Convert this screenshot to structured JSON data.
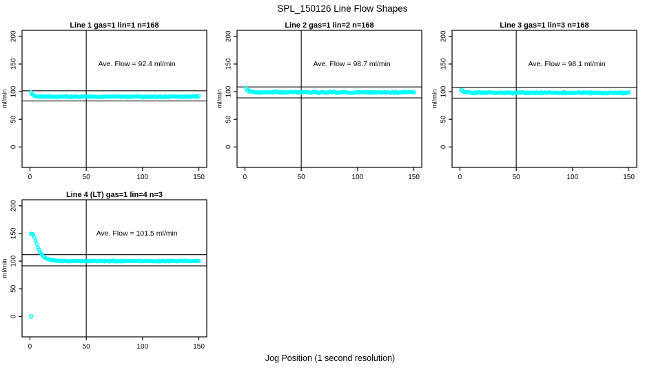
{
  "page": {
    "title": "SPL_150126  Line Flow Shapes",
    "xlabel": "Jog Position (1 second resolution)",
    "background": "#ffffff",
    "text_color": "#000000",
    "axis_color": "#000000"
  },
  "chart_data": [
    {
      "type": "scatter",
      "title": "Line 1 gas=1 lin=1 n=168",
      "annotation": "Ave. Flow =  92.4  ml/min",
      "ave_flow_ml_min": 92.4,
      "n": 168,
      "ylabel": "ml/min",
      "xticks": [
        0,
        50,
        100,
        150
      ],
      "yticks": [
        0,
        50,
        100,
        150,
        200
      ],
      "xlim": [
        -7,
        157
      ],
      "ylim": [
        -37,
        211
      ],
      "vline_x": 50,
      "hlines": [
        101.6,
        83.2
      ],
      "annotation_pos": [
        95,
        150
      ],
      "point_color": "#00ffff",
      "marker": "open-circle",
      "series": {
        "name": "flow",
        "x_start": 1,
        "x_end": 150,
        "step": 1,
        "noise": 0.9,
        "seed": 11,
        "key_points": [
          [
            1,
            98
          ],
          [
            2,
            95.5
          ],
          [
            3,
            93.5
          ],
          [
            4,
            92.5
          ],
          [
            6,
            91.5
          ],
          [
            10,
            91
          ],
          [
            80,
            91
          ],
          [
            150,
            91
          ]
        ]
      },
      "extra_points": []
    },
    {
      "type": "scatter",
      "title": "Line 2 gas=1 lin=2 n=168",
      "annotation": "Ave. Flow =  98.7  ml/min",
      "ave_flow_ml_min": 98.7,
      "n": 168,
      "ylabel": "ml/min",
      "xticks": [
        0,
        50,
        100,
        150
      ],
      "yticks": [
        0,
        50,
        100,
        150,
        200
      ],
      "xlim": [
        -7,
        157
      ],
      "ylim": [
        -37,
        211
      ],
      "vline_x": 50,
      "hlines": [
        108.6,
        88.8
      ],
      "annotation_pos": [
        95,
        150
      ],
      "point_color": "#00ffff",
      "marker": "open-circle",
      "series": {
        "name": "flow",
        "x_start": 1,
        "x_end": 150,
        "step": 1,
        "noise": 0.9,
        "seed": 22,
        "key_points": [
          [
            1,
            106
          ],
          [
            2,
            104
          ],
          [
            3,
            102.5
          ],
          [
            4,
            101
          ],
          [
            5,
            100.3
          ],
          [
            7,
            99.5
          ],
          [
            10,
            99
          ],
          [
            80,
            98.8
          ],
          [
            150,
            98.7
          ]
        ]
      },
      "extra_points": []
    },
    {
      "type": "scatter",
      "title": "Line 3 gas=1 lin=3 n=168",
      "annotation": "Ave. Flow =  98.1  ml/min",
      "ave_flow_ml_min": 98.1,
      "n": 168,
      "ylabel": "ml/min",
      "xticks": [
        0,
        50,
        100,
        150
      ],
      "yticks": [
        0,
        50,
        100,
        150,
        200
      ],
      "xlim": [
        -7,
        157
      ],
      "ylim": [
        -37,
        211
      ],
      "vline_x": 50,
      "hlines": [
        107.9,
        88.3
      ],
      "annotation_pos": [
        95,
        150
      ],
      "point_color": "#00ffff",
      "marker": "open-circle",
      "series": {
        "name": "flow",
        "x_start": 1,
        "x_end": 150,
        "step": 1,
        "noise": 0.9,
        "seed": 33,
        "key_points": [
          [
            1,
            103.5
          ],
          [
            2,
            102
          ],
          [
            3,
            100.5
          ],
          [
            4,
            99.5
          ],
          [
            6,
            98.5
          ],
          [
            10,
            98
          ],
          [
            80,
            97.9
          ],
          [
            150,
            97.9
          ]
        ]
      },
      "extra_points": []
    },
    {
      "type": "scatter",
      "title": "Line 4 (LT) gas=1 lin=4 n=3",
      "annotation": "Ave. Flow =  101.5  ml/min",
      "ave_flow_ml_min": 101.5,
      "n": 3,
      "ylabel": "ml/min",
      "xticks": [
        0,
        50,
        100,
        150
      ],
      "yticks": [
        0,
        50,
        100,
        150,
        200
      ],
      "xlim": [
        -7,
        157
      ],
      "ylim": [
        -37,
        211
      ],
      "vline_x": 50,
      "hlines": [
        111.7,
        91.4
      ],
      "annotation_pos": [
        95,
        150
      ],
      "point_color": "#00ffff",
      "marker": "open-circle",
      "series": {
        "name": "flow",
        "x_start": 1,
        "x_end": 150,
        "step": 1,
        "noise": 0.7,
        "seed": 44,
        "key_points": [
          [
            1,
            150
          ],
          [
            2,
            149.5
          ],
          [
            3,
            146.5
          ],
          [
            4,
            142.5
          ],
          [
            5,
            137.5
          ],
          [
            6,
            131.5
          ],
          [
            7,
            126
          ],
          [
            8,
            121.5
          ],
          [
            9,
            117.5
          ],
          [
            10,
            114
          ],
          [
            11,
            111
          ],
          [
            12,
            108.5
          ],
          [
            13,
            106.5
          ],
          [
            14,
            105
          ],
          [
            15,
            104
          ],
          [
            16,
            103.2
          ],
          [
            17,
            102.6
          ],
          [
            18,
            102.2
          ],
          [
            20,
            101.4
          ],
          [
            23,
            100.8
          ],
          [
            26,
            100.4
          ],
          [
            30,
            100.2
          ],
          [
            150,
            100
          ]
        ]
      },
      "extra_points": [
        [
          1,
          0
        ]
      ]
    }
  ]
}
